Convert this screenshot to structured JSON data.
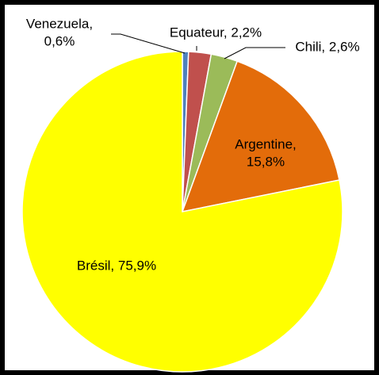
{
  "chart_data": {
    "type": "pie",
    "slices": [
      {
        "name": "Venezuela",
        "value": 0.6,
        "label_line1": "Venezuela,",
        "label_line2": "0,6%",
        "color": "#4f81bd"
      },
      {
        "name": "Equateur",
        "value": 2.2,
        "label_line1": "Equateur, 2,2%",
        "label_line2": "",
        "color": "#c0504d"
      },
      {
        "name": "Chili",
        "value": 2.6,
        "label_line1": "Chili, 2,6%",
        "label_line2": "",
        "color": "#9bbb59"
      },
      {
        "name": "Argentine",
        "value": 15.8,
        "label_line1": "Argentine,",
        "label_line2": "15,8%",
        "color": "#e36c0a"
      },
      {
        "name": "Brésil",
        "value": 75.9,
        "label_line1": "Brésil, 75,9%",
        "label_line2": "",
        "color": "#ffff00"
      }
    ],
    "start_angle_deg": 0,
    "direction": "clockwise",
    "border_color": "#ffffff",
    "frame_color": "#000000"
  }
}
